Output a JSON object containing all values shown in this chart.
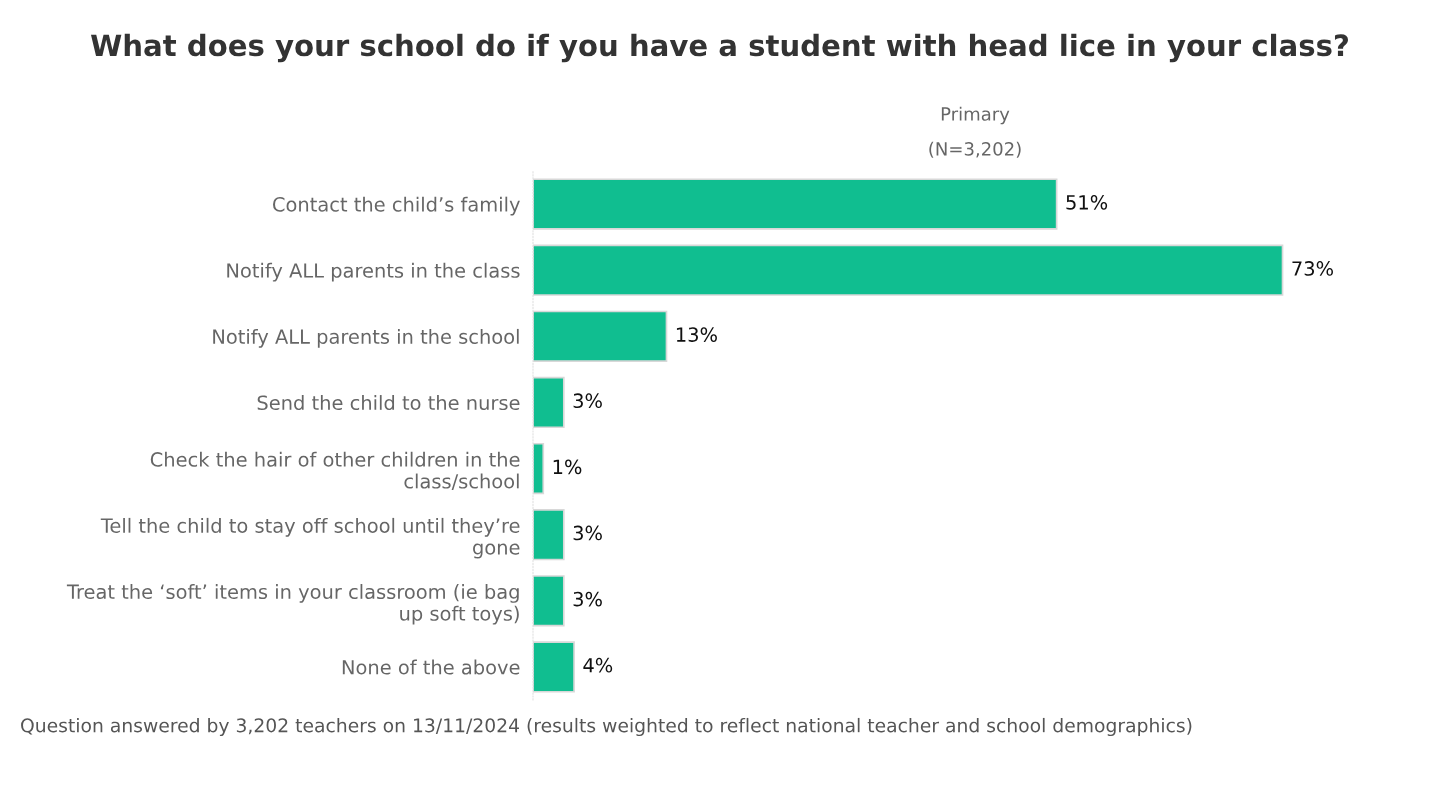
{
  "chart_data": {
    "type": "bar",
    "orientation": "horizontal",
    "title": "What does your school do if you have a student with head lice in your class?",
    "subtitle": "Primary\n\n(N=3,202)",
    "categories": [
      "Contact the child’s family",
      "Notify ALL parents in the class",
      "Notify ALL parents in the school",
      "Send the child to the nurse",
      "Check the hair of other children in the\nclass/school",
      "Tell the child to stay off school until they’re\ngone",
      "Treat the ‘soft’ items in your classroom (ie bag\nup soft toys)",
      "None of the above"
    ],
    "values": [
      51,
      73,
      13,
      3,
      1,
      3,
      3,
      4
    ],
    "value_labels": [
      "51%",
      "73%",
      "13%",
      "3%",
      "1%",
      "3%",
      "3%",
      "4%"
    ],
    "color": "#10be90",
    "annotations": [
      "Question answered by 3,202 teachers on 13/11/2024 (results weighted to reflect national teacher and school demographics)"
    ],
    "grid": false,
    "legend": false
  }
}
